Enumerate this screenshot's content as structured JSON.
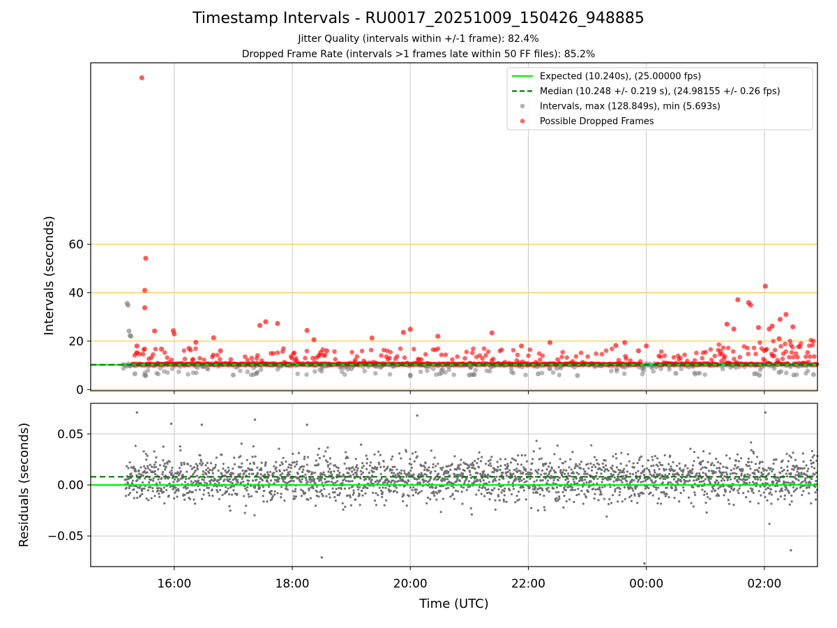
{
  "header": {
    "title": "Timestamp Intervals - RU0017_20251009_150426_948885",
    "subtitle_jitter": "Jitter Quality (intervals within +/-1 frame): 82.4%",
    "subtitle_dropped": "Dropped Frame Rate (intervals >1 frames late within 50 FF files): 85.2%"
  },
  "colors": {
    "expected": "#00ee00",
    "median": "#007a00",
    "intervals": "#808080",
    "dropped": "#ff0000",
    "yellow_grid": "#ffcc44",
    "grid": "#c8c8c8"
  },
  "chart_data": [
    {
      "type": "scatter",
      "ylabel": "Intervals (seconds)",
      "xlim": [
        "14:35",
        "02:54"
      ],
      "ylim": [
        -0.5,
        135
      ],
      "x_ticks": [
        "16:00",
        "18:00",
        "20:00",
        "22:00",
        "00:00",
        "02:00"
      ],
      "y_ticks": [
        0,
        20,
        40,
        60
      ],
      "grid": true,
      "legend_position": "top-right",
      "legend": [
        {
          "key": "expected",
          "label": "Expected (10.240s), (25.00000 fps)",
          "style": "line"
        },
        {
          "key": "median",
          "label": "Median (10.248 +/- 0.219 s), (24.98155 +/- 0.26 fps)",
          "style": "dashed"
        },
        {
          "key": "intervals",
          "label": "Intervals, max (128.849s), min (5.693s)",
          "style": "dot"
        },
        {
          "key": "dropped",
          "label": "Possible Dropped Frames",
          "style": "dot"
        }
      ],
      "expected_interval": 10.24,
      "median_interval": 10.248,
      "max_interval": 128.849,
      "min_interval": 5.693,
      "series": [
        {
          "name": "Possible Dropped Frames",
          "x": [
            "15:27",
            "15:31",
            "15:30",
            "15:30",
            "15:22",
            "15:40",
            "15:47",
            "15:59",
            "16:00",
            "16:15",
            "16:22",
            "16:40",
            "16:47",
            "17:27",
            "17:33",
            "17:45",
            "18:15",
            "18:22",
            "18:29",
            "18:35",
            "19:21",
            "19:53",
            "20:00",
            "20:28",
            "21:53",
            "21:23",
            "22:22",
            "23:29",
            "23:38",
            "23:52",
            "24:00",
            "25:22",
            "25:29",
            "25:33",
            "25:44",
            "25:46",
            "25:54",
            "26:01",
            "26:05",
            "26:08",
            "26:15",
            "26:16",
            "26:22",
            "26:29"
          ],
          "values": [
            128.8,
            54.2,
            41.0,
            33.8,
            18.0,
            24.2,
            16.7,
            24.3,
            23.0,
            17.0,
            19.5,
            21.4,
            16.0,
            26.5,
            28.0,
            27.3,
            24.4,
            20.6,
            15.3,
            16.0,
            21.3,
            23.6,
            24.9,
            22.0,
            18.0,
            23.4,
            19.4,
            18.2,
            19.4,
            16.0,
            18.0,
            27.0,
            25.0,
            37.1,
            35.9,
            34.9,
            25.6,
            42.7,
            25.0,
            26.2,
            21.0,
            29.0,
            31.0,
            25.9
          ]
        },
        {
          "name": "Intervals",
          "x": [
            "15:12",
            "15:13",
            "15:14",
            "15:15",
            "15:16",
            "15:20",
            "15:30",
            "15:31",
            "16:30",
            "17:00",
            "18:30",
            "19:00",
            "19:30",
            "20:00",
            "20:30",
            "21:00",
            "21:05",
            "22:10",
            "22:50",
            "23:30",
            "00:10",
            "00:30",
            "01:50",
            "01:55",
            "02:15",
            "02:30",
            "02:50"
          ],
          "values": [
            35.6,
            34.8,
            24.2,
            22.3,
            22.0,
            6.5,
            6.0,
            5.7,
            9.5,
            6.0,
            9.0,
            8.6,
            9.2,
            5.7,
            6.5,
            6.0,
            6.2,
            6.5,
            5.8,
            8.5,
            9.4,
            6.7,
            6.5,
            5.9,
            7.1,
            6.0,
            6.2
          ]
        }
      ]
    },
    {
      "type": "scatter",
      "xlabel": "Time (UTC)",
      "ylabel": "Residuals (seconds)",
      "ylim": [
        -0.08,
        0.08
      ],
      "y_ticks": [
        -0.05,
        0.0,
        0.05
      ],
      "y_tick_labels": [
        "−0.05",
        "0.00",
        "0.05"
      ],
      "expected_residual": 0.0,
      "median_residual": 0.008,
      "residual_center": 0.006,
      "residual_spread": 0.011,
      "series": [
        {
          "name": "Residuals",
          "x": [
            "15:22",
            "15:57",
            "16:28",
            "17:22",
            "18:15",
            "18:30",
            "20:07",
            "23:58",
            "02:01",
            "02:27"
          ],
          "values": [
            0.071,
            0.06,
            0.059,
            0.064,
            0.059,
            -0.071,
            0.068,
            -0.077,
            0.071,
            -0.064
          ]
        }
      ]
    }
  ]
}
